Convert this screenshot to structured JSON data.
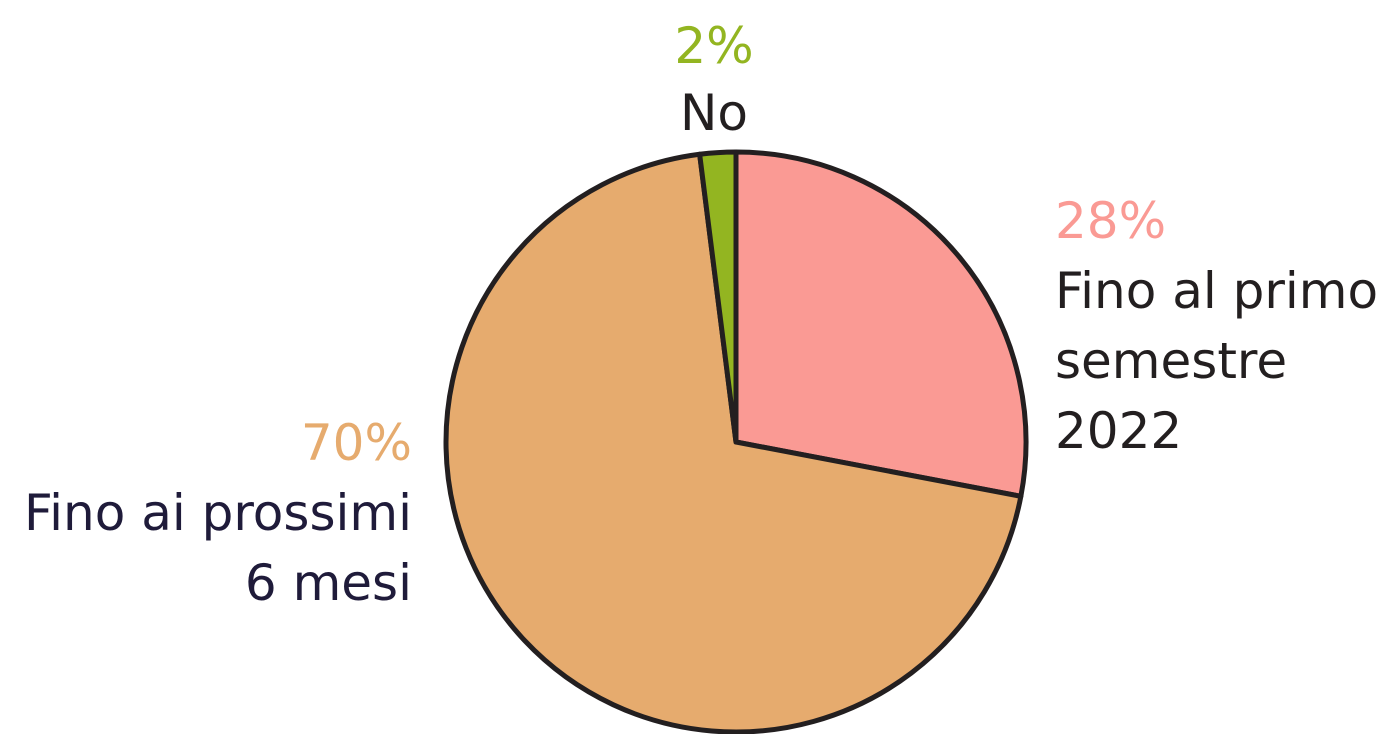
{
  "chart_data": {
    "type": "pie",
    "start_angle_deg": 0,
    "direction": "clockwise",
    "slices": [
      {
        "label_lines": [
          "Fino al primo",
          "semestre",
          "2022"
        ],
        "value": 28,
        "value_label": "28%",
        "color": "#fa9a94",
        "label_color": "#231f20",
        "value_color": "#fa9a94"
      },
      {
        "label_lines": [
          "Fino ai prossimi",
          "6 mesi"
        ],
        "value": 70,
        "value_label": "70%",
        "color": "#e6ab6e",
        "label_color": "#1f1b3a",
        "value_color": "#e6ab6e"
      },
      {
        "label_lines": [
          "No"
        ],
        "value": 2,
        "value_label": "2%",
        "color": "#93b521",
        "label_color": "#231f20",
        "value_color": "#93b521"
      }
    ],
    "outline_color": "#231f20"
  }
}
